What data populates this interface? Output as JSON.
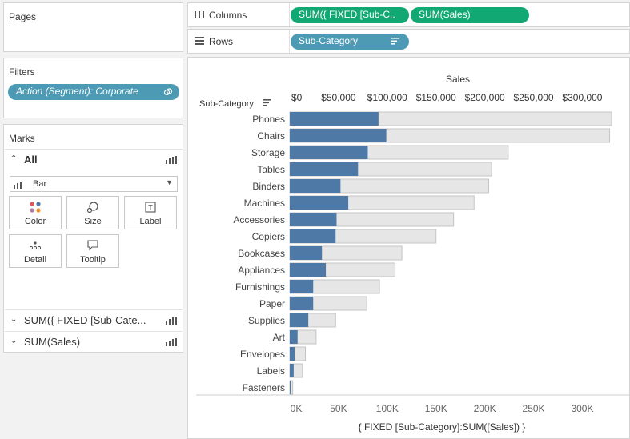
{
  "pages": {
    "title": "Pages"
  },
  "filters": {
    "title": "Filters",
    "pill": "Action (Segment): Corporate",
    "pill_icon": "link-icon"
  },
  "marks": {
    "title": "Marks",
    "all_label": "All",
    "mark_type": "Bar",
    "buttons": [
      {
        "label": "Color",
        "icon": "color-dots-icon"
      },
      {
        "label": "Size",
        "icon": "size-icon"
      },
      {
        "label": "Label",
        "icon": "label-icon"
      },
      {
        "label": "Detail",
        "icon": "detail-icon"
      },
      {
        "label": "Tooltip",
        "icon": "tooltip-icon"
      }
    ],
    "measure_rows": [
      "SUM({ FIXED [Sub-Cate...",
      "SUM(Sales)"
    ]
  },
  "columns_shelf": {
    "label": "Columns",
    "pills": [
      "SUM({ FIXED [Sub-C..",
      "SUM(Sales)"
    ]
  },
  "rows_shelf": {
    "label": "Rows",
    "pills": [
      "Sub-Category"
    ]
  },
  "colors": {
    "highlight_bar": "#4e79a7",
    "total_bar": "#e6e6e6",
    "green_pill": "#12a873",
    "blue_pill": "#4d9ab5"
  },
  "chart_data": {
    "type": "bar",
    "orientation": "horizontal",
    "row_header": "Sub-Category",
    "top_axis_title": "Sales",
    "top_axis_ticks": [
      "$0",
      "$50,000",
      "$100,000",
      "$150,000",
      "$200,000",
      "$250,000",
      "$300,000"
    ],
    "top_axis_values": [
      0,
      50000,
      100000,
      150000,
      200000,
      250000,
      300000
    ],
    "bottom_axis_title": "{ FIXED [Sub-Category]:SUM([Sales]) }",
    "bottom_axis_ticks": [
      "0K",
      "50K",
      "100K",
      "150K",
      "200K",
      "250K",
      "300K"
    ],
    "bottom_axis_values": [
      0,
      50000,
      100000,
      150000,
      200000,
      250000,
      300000
    ],
    "xlim": [
      0,
      330000
    ],
    "categories": [
      "Phones",
      "Chairs",
      "Storage",
      "Tables",
      "Binders",
      "Machines",
      "Accessories",
      "Copiers",
      "Bookcases",
      "Appliances",
      "Furnishings",
      "Paper",
      "Supplies",
      "Art",
      "Envelopes",
      "Labels",
      "Fasteners"
    ],
    "series": [
      {
        "name": "SUM(Sales)",
        "values": [
          91000,
          99000,
          80000,
          70000,
          52000,
          60000,
          48000,
          47000,
          33000,
          37000,
          24000,
          24000,
          19000,
          8000,
          5000,
          4000,
          1000
        ]
      },
      {
        "name": "SUM({ FIXED [Sub-Category]:SUM([Sales]) })",
        "values": [
          330000,
          328000,
          224000,
          207000,
          204000,
          189000,
          168000,
          150000,
          115000,
          108000,
          92000,
          79000,
          47000,
          27000,
          16000,
          13000,
          3000
        ]
      }
    ]
  }
}
